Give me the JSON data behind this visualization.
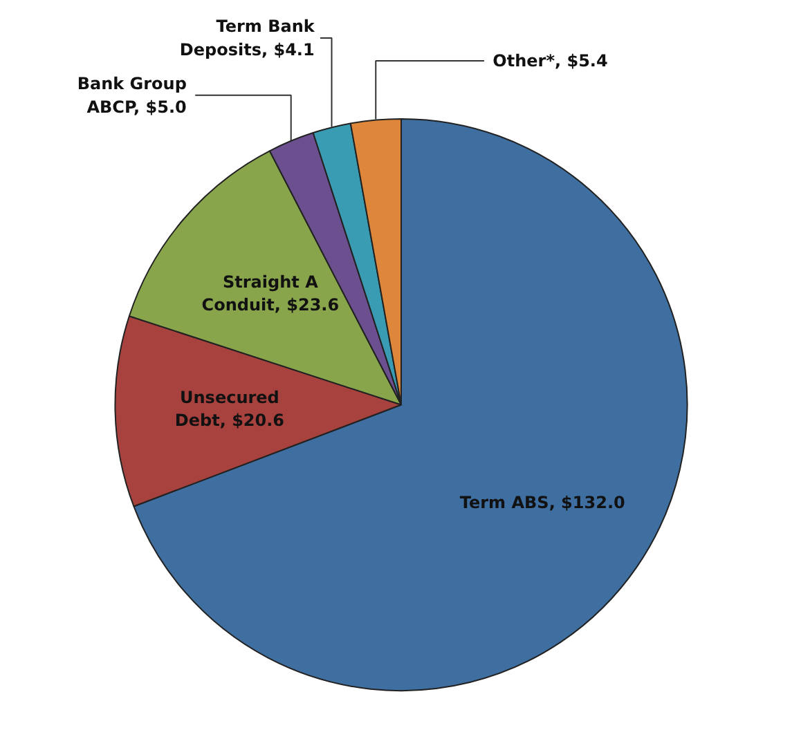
{
  "chart_data": {
    "type": "pie",
    "categories": [
      "Term ABS",
      "Unsecured Debt",
      "Straight A Conduit",
      "Bank Group ABCP",
      "Term Bank Deposits",
      "Other*"
    ],
    "values": [
      132.0,
      20.6,
      23.6,
      5.0,
      4.1,
      5.4
    ],
    "value_labels": [
      "$132.0",
      "$20.6",
      "$23.6",
      "$5.0",
      "$4.1",
      "$5.4"
    ],
    "colors": [
      "#3f6ea0",
      "#a8423f",
      "#89a54c",
      "#6c4f8f",
      "#3a9cb2",
      "#de873b"
    ]
  }
}
